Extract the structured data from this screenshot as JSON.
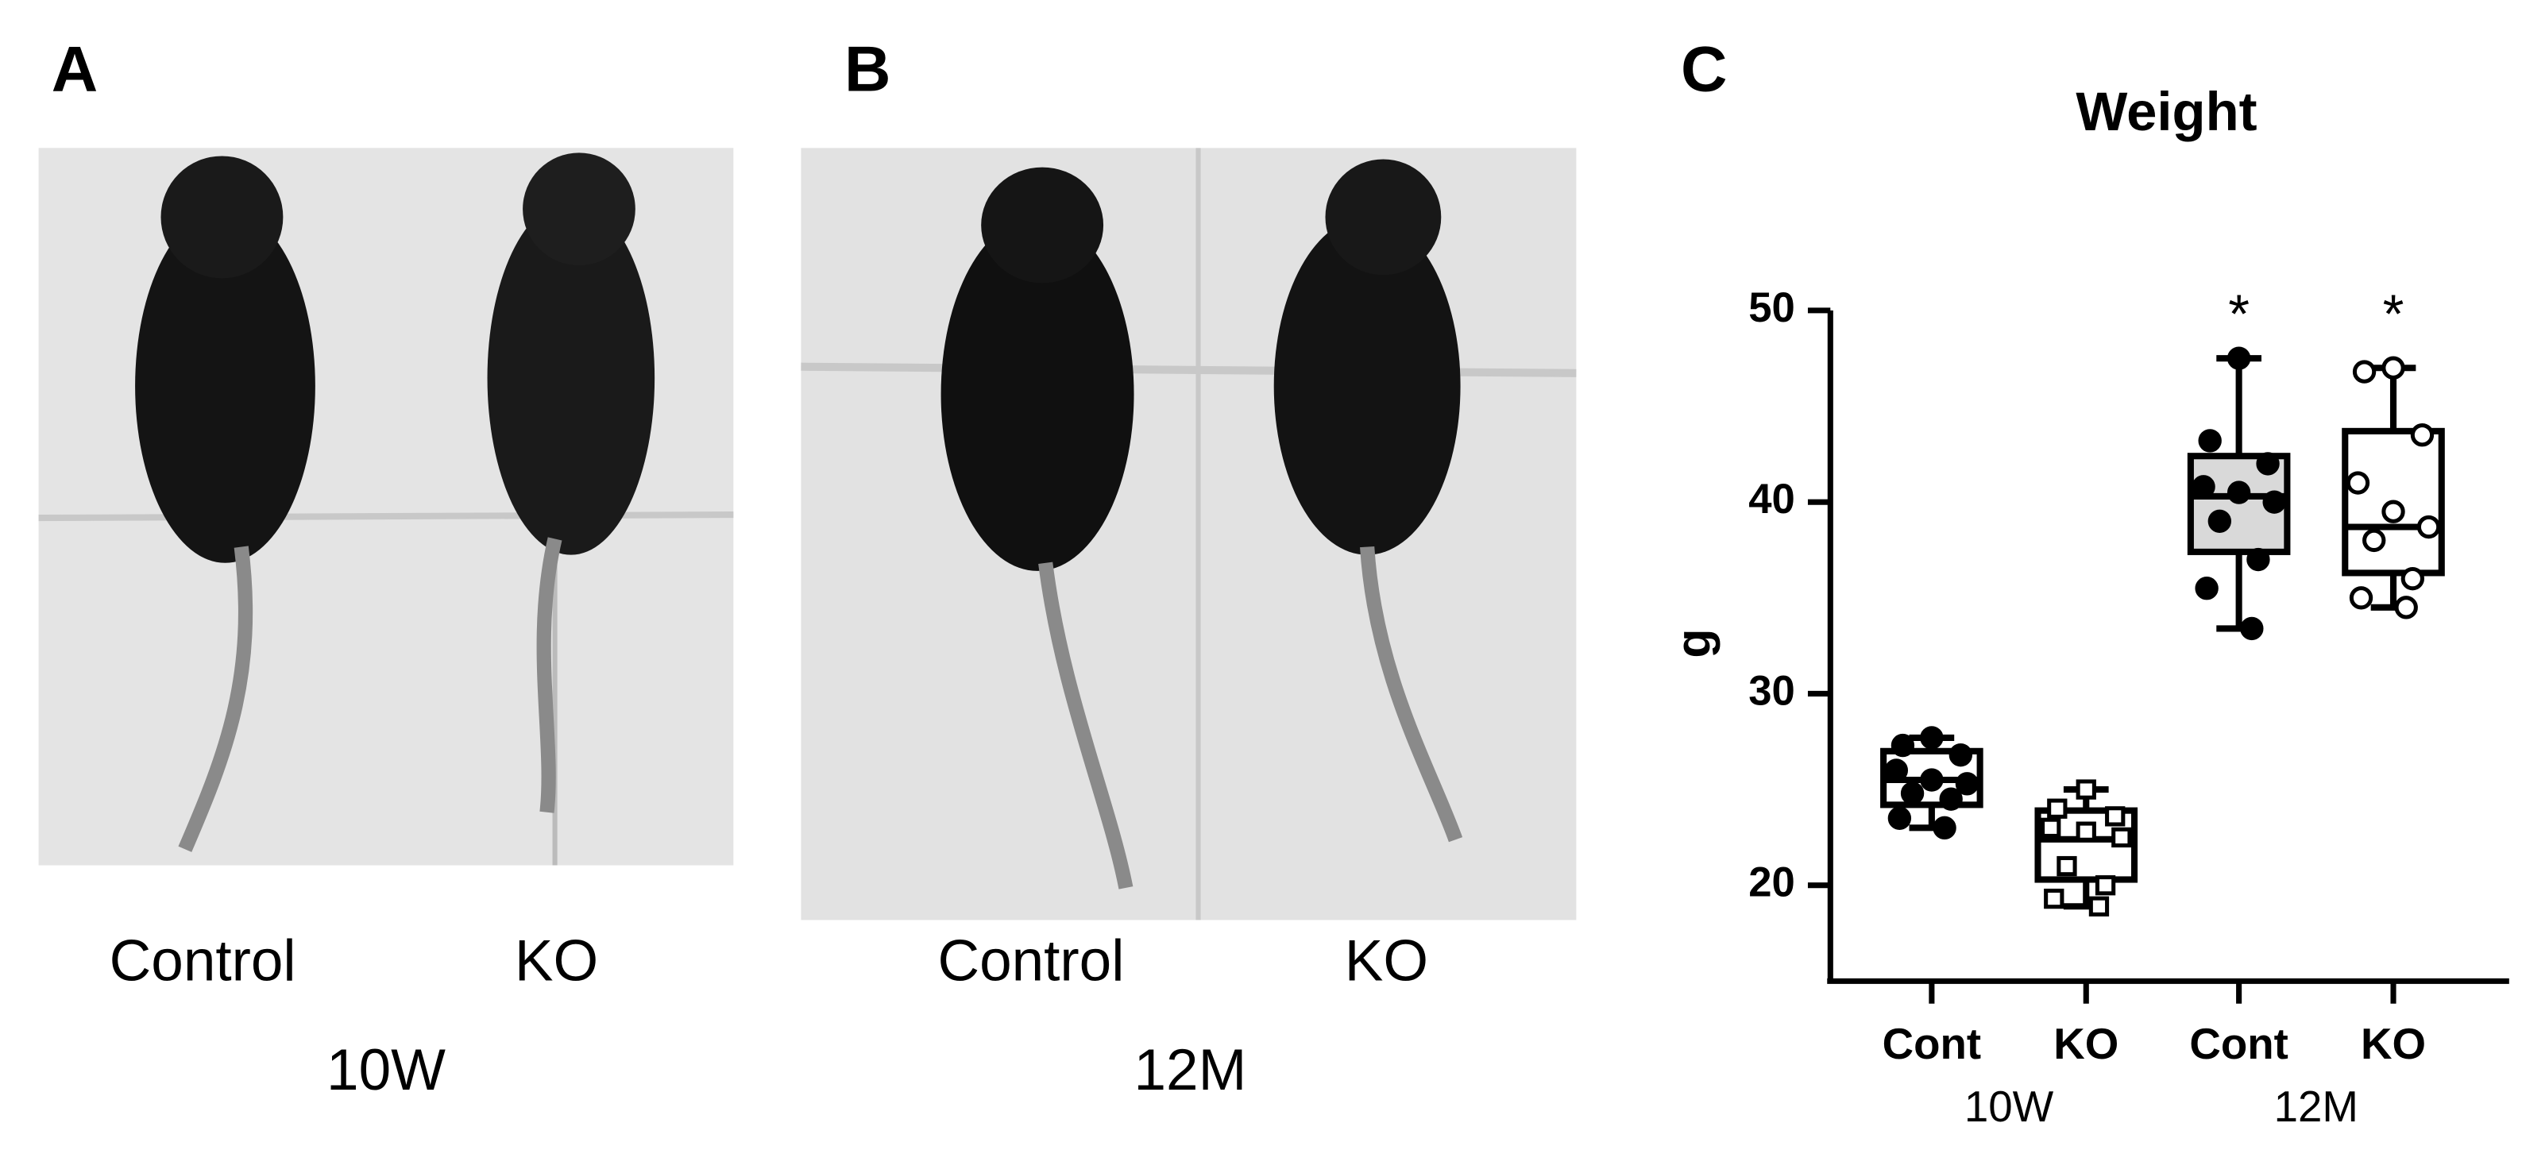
{
  "panel_a": {
    "letter": "A",
    "labels": [
      "Control",
      "KO"
    ],
    "age": "10W"
  },
  "panel_b": {
    "letter": "B",
    "labels": [
      "Control",
      "KO"
    ],
    "age": "12M"
  },
  "chart_data": {
    "type": "box",
    "letter": "C",
    "title": "Weight",
    "ylabel": "g",
    "categories": [
      "Cont",
      "KO",
      "Cont",
      "KO"
    ],
    "groups": [
      "10W",
      "12M"
    ],
    "ylim": [
      15,
      50
    ],
    "yticks": [
      20,
      30,
      40,
      50
    ],
    "significance": [
      null,
      null,
      "*",
      "*"
    ],
    "boxes": [
      {
        "min": 23.0,
        "q1": 24.2,
        "median": 25.5,
        "q3": 27.0,
        "max": 27.7,
        "fill": "#ffffff",
        "marker": "circle-filled",
        "points": [
          27.7,
          27.3,
          26.8,
          26.0,
          25.5,
          25.3,
          24.8,
          24.5,
          23.5,
          23.0
        ]
      },
      {
        "min": 18.9,
        "q1": 20.3,
        "median": 22.4,
        "q3": 23.9,
        "max": 25.0,
        "fill": "#ffffff",
        "marker": "square-open",
        "points": [
          25.0,
          24.0,
          23.6,
          23.0,
          22.8,
          22.5,
          21.0,
          20.0,
          19.3,
          18.9
        ]
      },
      {
        "min": 33.4,
        "q1": 37.4,
        "median": 40.3,
        "q3": 42.4,
        "max": 47.5,
        "fill": "#d9d9d9",
        "marker": "circle-filled",
        "points": [
          47.5,
          43.2,
          42.0,
          40.8,
          40.5,
          40.0,
          39.0,
          37.0,
          35.5,
          33.4
        ]
      },
      {
        "min": 34.5,
        "q1": 36.3,
        "median": 38.7,
        "q3": 43.7,
        "max": 47.0,
        "fill": "#ffffff",
        "marker": "circle-open",
        "points": [
          47.0,
          46.8,
          43.5,
          41.0,
          39.5,
          38.7,
          38.0,
          36.0,
          35.0,
          34.5
        ]
      }
    ]
  }
}
